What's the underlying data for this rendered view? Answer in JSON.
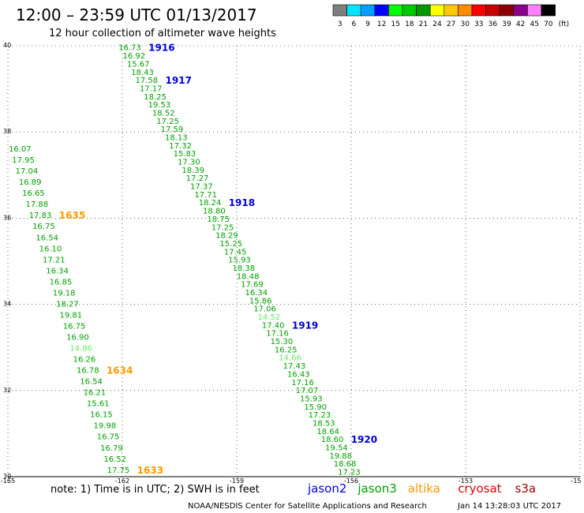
{
  "title": "12:00 – 23:59 UTC 01/13/2017",
  "subtitle": "12 hour collection of altimeter wave heights",
  "note": "note: 1) Time is in UTC; 2) SWH is in feet",
  "credit": "NOAA/NESDIS Center for Satellite Applications and Research",
  "timestamp": "Jan 14 13:28:03 UTC 2017",
  "colorbar": {
    "unit": "(ft)",
    "labels": [
      "3",
      "6",
      "9",
      "12",
      "15",
      "18",
      "21",
      "24",
      "27",
      "30",
      "33",
      "36",
      "39",
      "42",
      "45",
      "70"
    ],
    "colors": [
      "#7f7f7f",
      "#00e5ff",
      "#00a0ff",
      "#0000ff",
      "#00ff00",
      "#00c800",
      "#009600",
      "#ffff00",
      "#ffc800",
      "#ff8c00",
      "#ff0000",
      "#c80000",
      "#8b0000",
      "#8b008b",
      "#ff80ff",
      "#000000"
    ]
  },
  "satellites": [
    {
      "name": "jason2",
      "color": "#0000dd"
    },
    {
      "name": "jason3",
      "color": "#00a000"
    },
    {
      "name": "altika",
      "color": "#ff9900"
    },
    {
      "name": "cryosat",
      "color": "#dd0000"
    },
    {
      "name": "s3a",
      "color": "#990000"
    }
  ],
  "chart_data": {
    "type": "scatter",
    "xlim": [
      -165,
      -150
    ],
    "ylim": [
      30,
      40
    ],
    "xticks": [
      "-165",
      "-162",
      "-159",
      "-156",
      "-153",
      "-15"
    ],
    "yticks": [
      "40",
      "38",
      "36",
      "34",
      "32",
      "30"
    ],
    "grid": true,
    "tracks": [
      {
        "satellite": "jason3",
        "start_lon": -162.1,
        "start_lat": 39.95,
        "end_lon": -156.35,
        "end_lat": 30.1,
        "values": [
          "16.73",
          "16.92",
          "15.67",
          "18.43",
          "17.58",
          "17.17",
          "18.25",
          "19.53",
          "18.52",
          "17.25",
          "17.59",
          "18.13",
          "17.32",
          "15.83",
          "17.30",
          "18.39",
          "17.27",
          "17.37",
          "17.71",
          "18.24",
          "18.80",
          "18.75",
          "17.25",
          "18.29",
          "15.25",
          "17.45",
          "15.93",
          "18.38",
          "18.48",
          "17.69",
          "16.34",
          "15.86",
          "17.06",
          "14.52",
          "17.40",
          "17.16",
          "15.30",
          "16.25",
          "14.66",
          "17.43",
          "16.43",
          "17.16",
          "17.07",
          "15.93",
          "15.90",
          "17.23",
          "18.53",
          "18.64",
          "18.60",
          "19.54",
          "19.88",
          "18.68",
          "17.23"
        ],
        "light_values": [
          "14.52",
          "14.66"
        ],
        "time_labels": [
          {
            "text": "1916",
            "color": "#0000dd",
            "at": "16.73"
          },
          {
            "text": "1917",
            "color": "#0000dd",
            "at": "17.58"
          },
          {
            "text": "1918",
            "color": "#0000dd",
            "at": "18.24"
          },
          {
            "text": "1919",
            "color": "#0000dd",
            "at": "17.40"
          },
          {
            "text": "1920",
            "color": "#0000dd",
            "at": "18.60"
          }
        ]
      },
      {
        "satellite": "jason3",
        "start_lon": -164.98,
        "start_lat": 37.6,
        "end_lon": -162.4,
        "end_lat": 30.15,
        "values": [
          "16.07",
          "17.95",
          "17.04",
          "16.89",
          "16.65",
          "17.88",
          "17.83",
          "16.75",
          "16.54",
          "16.10",
          "17.21",
          "16.34",
          "16.85",
          "19.18",
          "18.27",
          "19.81",
          "16.75",
          "16.90",
          "14.86",
          "16.26",
          "16.78",
          "16.54",
          "16.21",
          "15.61",
          "16.15",
          "19.98",
          "16.75",
          "16.79",
          "16.52",
          "17.75"
        ],
        "light_values": [
          "14.86"
        ],
        "time_labels": [
          {
            "text": "1635",
            "color": "#ff9900",
            "at": "17.83"
          },
          {
            "text": "1634",
            "color": "#ff9900",
            "at": "16.78"
          },
          {
            "text": "1633",
            "color": "#ff9900",
            "at": "17.75"
          }
        ]
      }
    ]
  }
}
